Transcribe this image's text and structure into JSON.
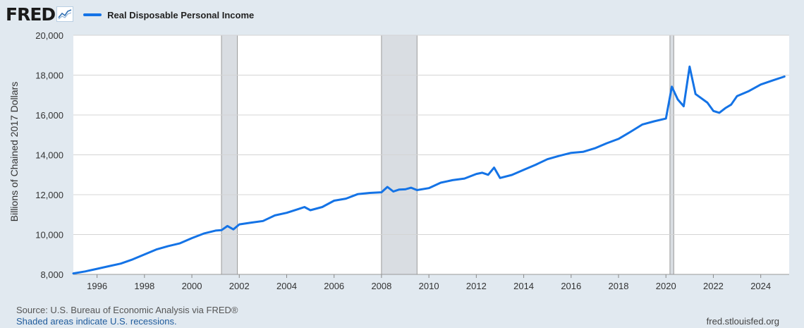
{
  "brand": {
    "logo_text": "FRED",
    "logo_icon": "fred-chart-icon"
  },
  "colors": {
    "series": "#1473e6",
    "recession": "#d9dde2",
    "grid": "#d4d4d4",
    "background": "#e1e9f0"
  },
  "chart_data": {
    "type": "line",
    "ylabel": "Billions of Chained 2017 Dollars",
    "xlim": [
      1995.0,
      2025.2
    ],
    "ylim": [
      8000,
      20000
    ],
    "yticks": [
      8000,
      10000,
      12000,
      14000,
      16000,
      18000,
      20000
    ],
    "ytick_labels": [
      "8,000",
      "10,000",
      "12,000",
      "14,000",
      "16,000",
      "18,000",
      "20,000"
    ],
    "xticks": [
      1996,
      1998,
      2000,
      2002,
      2004,
      2006,
      2008,
      2010,
      2012,
      2014,
      2016,
      2018,
      2020,
      2022,
      2024
    ],
    "grid": true,
    "legend_position": "top-left",
    "recessions": [
      [
        2001.25,
        2001.92
      ],
      [
        2008.0,
        2009.5
      ],
      [
        2020.17,
        2020.33
      ]
    ],
    "series": [
      {
        "name": "Real Disposable Personal Income",
        "x": [
          1995.0,
          1995.5,
          1996.0,
          1996.5,
          1997.0,
          1997.5,
          1998.0,
          1998.5,
          1999.0,
          1999.5,
          2000.0,
          2000.5,
          2001.0,
          2001.25,
          2001.5,
          2001.75,
          2002.0,
          2002.5,
          2003.0,
          2003.5,
          2004.0,
          2004.5,
          2004.75,
          2005.0,
          2005.5,
          2006.0,
          2006.5,
          2007.0,
          2007.5,
          2008.0,
          2008.25,
          2008.5,
          2008.75,
          2009.0,
          2009.25,
          2009.5,
          2010.0,
          2010.5,
          2011.0,
          2011.5,
          2012.0,
          2012.25,
          2012.5,
          2012.75,
          2013.0,
          2013.5,
          2014.0,
          2014.5,
          2015.0,
          2015.5,
          2016.0,
          2016.5,
          2017.0,
          2017.5,
          2018.0,
          2018.5,
          2019.0,
          2019.5,
          2020.0,
          2020.25,
          2020.5,
          2020.75,
          2021.0,
          2021.25,
          2021.75,
          2022.0,
          2022.25,
          2022.5,
          2022.75,
          2023.0,
          2023.5,
          2024.0,
          2024.5,
          2025.0
        ],
        "y": [
          8050,
          8150,
          8280,
          8410,
          8540,
          8750,
          9000,
          9250,
          9420,
          9560,
          9820,
          10050,
          10200,
          10220,
          10430,
          10260,
          10510,
          10600,
          10680,
          10960,
          11090,
          11280,
          11380,
          11220,
          11380,
          11700,
          11800,
          12030,
          12090,
          12120,
          12390,
          12160,
          12260,
          12270,
          12350,
          12230,
          12330,
          12600,
          12730,
          12810,
          13040,
          13100,
          13000,
          13360,
          12840,
          12990,
          13250,
          13500,
          13780,
          13950,
          14100,
          14150,
          14330,
          14580,
          14800,
          15150,
          15520,
          15680,
          15820,
          17420,
          16780,
          16440,
          18430,
          17050,
          16620,
          16200,
          16110,
          16340,
          16520,
          16950,
          17200,
          17530,
          17730,
          17930
        ]
      }
    ]
  },
  "footer": {
    "source": "Source: U.S. Bureau of Economic Analysis via FRED®",
    "recession_note": "Shaded areas indicate U.S. recessions.",
    "credit": "fred.stlouisfed.org"
  }
}
